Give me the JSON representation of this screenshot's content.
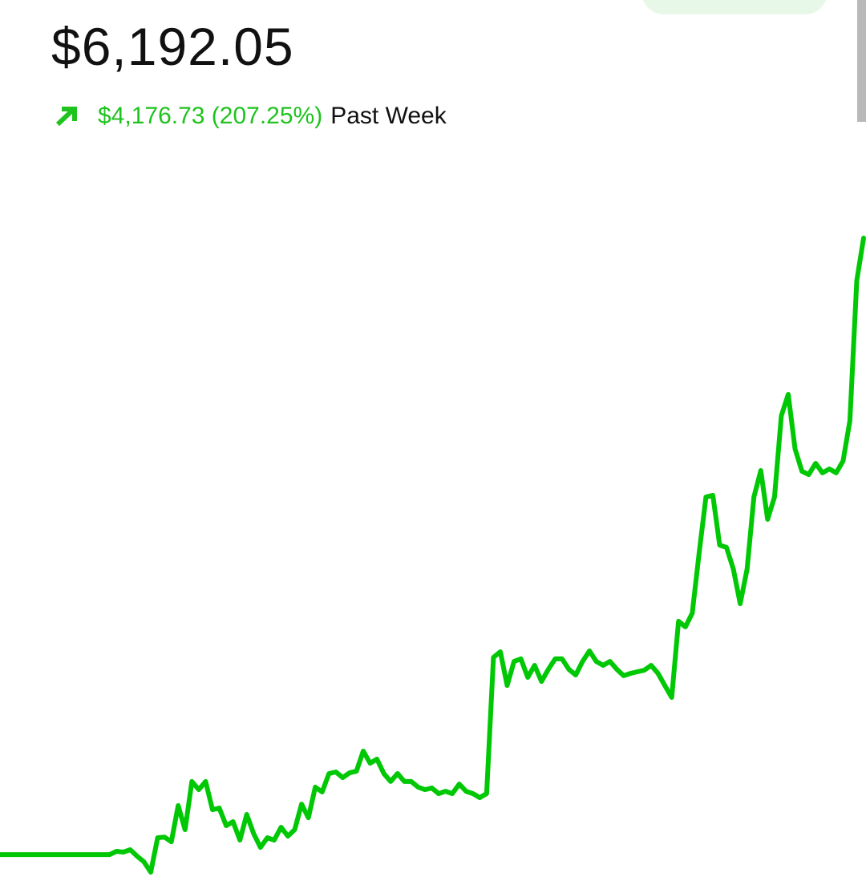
{
  "header": {
    "balance": "$6,192.05",
    "change": "$4,176.73 (207.25%)",
    "period": "Past Week"
  },
  "chart_data": {
    "type": "line",
    "color": "#00c805",
    "values": [
      2015,
      2015,
      2015,
      2015,
      2015,
      2015,
      2015,
      2015,
      2015,
      2015,
      2015,
      2015,
      2015,
      2015,
      2015,
      2015,
      2015,
      2037,
      2032,
      2048,
      2004,
      1966,
      1896,
      2129,
      2134,
      2102,
      2347,
      2184,
      2510,
      2455,
      2510,
      2319,
      2330,
      2211,
      2238,
      2113,
      2287,
      2157,
      2064,
      2129,
      2113,
      2200,
      2140,
      2184,
      2357,
      2265,
      2472,
      2439,
      2564,
      2575,
      2537,
      2569,
      2580,
      2716,
      2634,
      2662,
      2564,
      2510,
      2564,
      2510,
      2510,
      2472,
      2455,
      2466,
      2428,
      2444,
      2428,
      2493,
      2444,
      2428,
      2401,
      2428,
      3351,
      3389,
      3161,
      3324,
      3341,
      3216,
      3297,
      3188,
      3270,
      3341,
      3341,
      3270,
      3232,
      3324,
      3395,
      3324,
      3297,
      3324,
      3270,
      3227,
      3243,
      3254,
      3264,
      3297,
      3243,
      3161,
      3080,
      3596,
      3558,
      3650,
      4058,
      4438,
      4449,
      4112,
      4096,
      3949,
      3715,
      3949,
      4438,
      4617,
      4286,
      4438,
      4988,
      5133,
      4764,
      4612,
      4590,
      4666,
      4601,
      4628,
      4601,
      4682,
      4954,
      5904,
      6192
    ]
  }
}
